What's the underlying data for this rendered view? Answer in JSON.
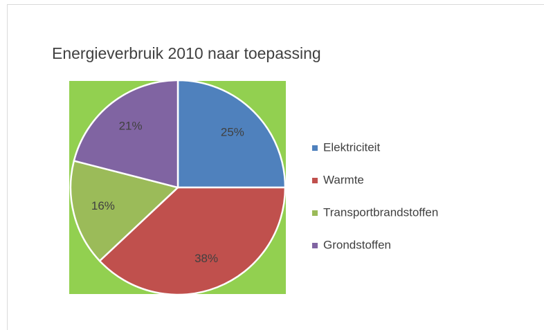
{
  "chart_data": {
    "type": "pie",
    "title": "Energieverbruik 2010 naar toepassing",
    "categories": [
      "Elektriciteit",
      "Warmte",
      "Transportbrandstoffen",
      "Grondstoffen"
    ],
    "values": [
      25,
      38,
      16,
      21
    ],
    "value_labels": [
      "25%",
      "38%",
      "16%",
      "21%"
    ],
    "colors": [
      "#4f81bd",
      "#c0504d",
      "#9bbb59",
      "#8064a2"
    ],
    "plot_background": "#92d050",
    "legend": "right"
  }
}
